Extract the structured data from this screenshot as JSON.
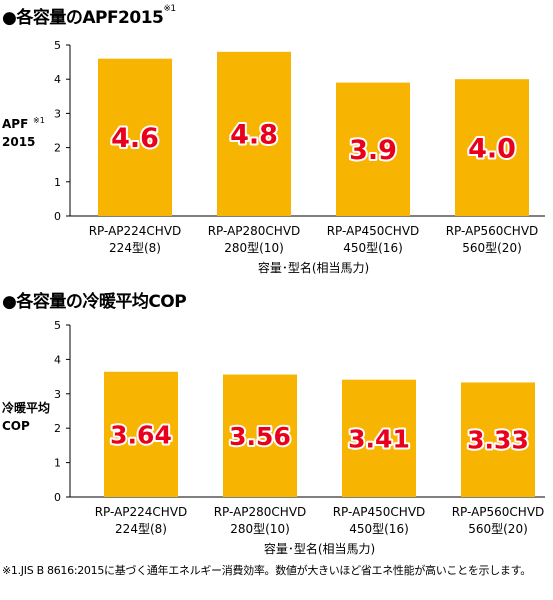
{
  "chart_data": [
    {
      "type": "bar",
      "title": "●各容量のAPF2015",
      "title_note": "※1",
      "ylabel_line1": "APF",
      "ylabel_note": "※1",
      "ylabel_line2": "2015",
      "xlabel": "容量･型名(相当馬力)",
      "categories": [
        "RP-AP224CHVD",
        "RP-AP280CHVD",
        "RP-AP450CHVD",
        "RP-AP560CHVD"
      ],
      "subcategories": [
        "224型(8)",
        "280型(10)",
        "450型(16)",
        "560型(20)"
      ],
      "values": [
        4.6,
        4.8,
        3.9,
        4.0
      ],
      "value_labels": [
        "4.6",
        "4.8",
        "3.9",
        "4.0"
      ],
      "yticks": [
        "0",
        "1",
        "2",
        "3",
        "4",
        "5"
      ],
      "ylim": [
        0,
        5
      ],
      "grid": false,
      "bar_color": "#f7b400",
      "label_color": "#e8001c"
    },
    {
      "type": "bar",
      "title": "●各容量の冷暖平均COP",
      "ylabel_line1": "冷暖平均",
      "ylabel_line2": "COP",
      "xlabel": "容量･型名(相当馬力)",
      "categories": [
        "RP-AP224CHVD",
        "RP-AP280CHVD",
        "RP-AP450CHVD",
        "RP-AP560CHVD"
      ],
      "subcategories": [
        "224型(8)",
        "280型(10)",
        "450型(16)",
        "560型(20)"
      ],
      "values": [
        3.64,
        3.56,
        3.41,
        3.33
      ],
      "value_labels": [
        "3.64",
        "3.56",
        "3.41",
        "3.33"
      ],
      "yticks": [
        "0",
        "1",
        "2",
        "3",
        "4",
        "5"
      ],
      "ylim": [
        0,
        5
      ],
      "grid": false,
      "bar_color": "#f7b400",
      "label_color": "#e8001c"
    }
  ],
  "footnote": "※1.JIS B 8616:2015に基づく通年エネルギー消費効率。数値が大きいほど省エネ性能が高いことを示します。"
}
